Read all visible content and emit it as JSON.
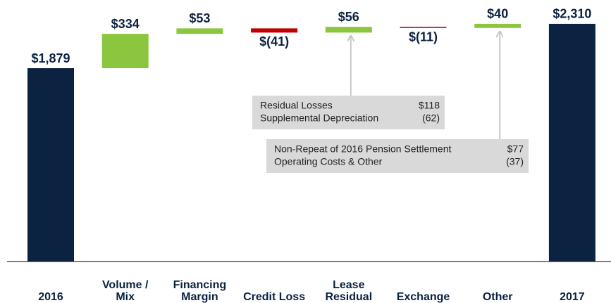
{
  "chart_data": {
    "type": "waterfall",
    "categories": [
      "2016",
      "Volume / Mix",
      "Financing Margin",
      "Credit Loss",
      "Lease Residual",
      "Exchange",
      "Other",
      "2017"
    ],
    "values": [
      1879,
      334,
      53,
      -41,
      56,
      -11,
      40,
      2310
    ],
    "value_labels": [
      "$1,879",
      "$334",
      "$53",
      "$(41)",
      "$56",
      "$(11)",
      "$40",
      "$2,310"
    ],
    "total_color": "#0b2240",
    "increase_color": "#8cc63e",
    "decrease_color": "#c00000",
    "annotations": [
      {
        "rows": [
          [
            "Residual Losses",
            "$118"
          ],
          [
            "Supplemental Depreciation",
            "(62)"
          ]
        ]
      },
      {
        "rows": [
          [
            "Non-Repeat of 2016 Pension Settlement",
            "$77"
          ],
          [
            "Operating Costs & Other",
            "(37)"
          ]
        ]
      }
    ]
  }
}
